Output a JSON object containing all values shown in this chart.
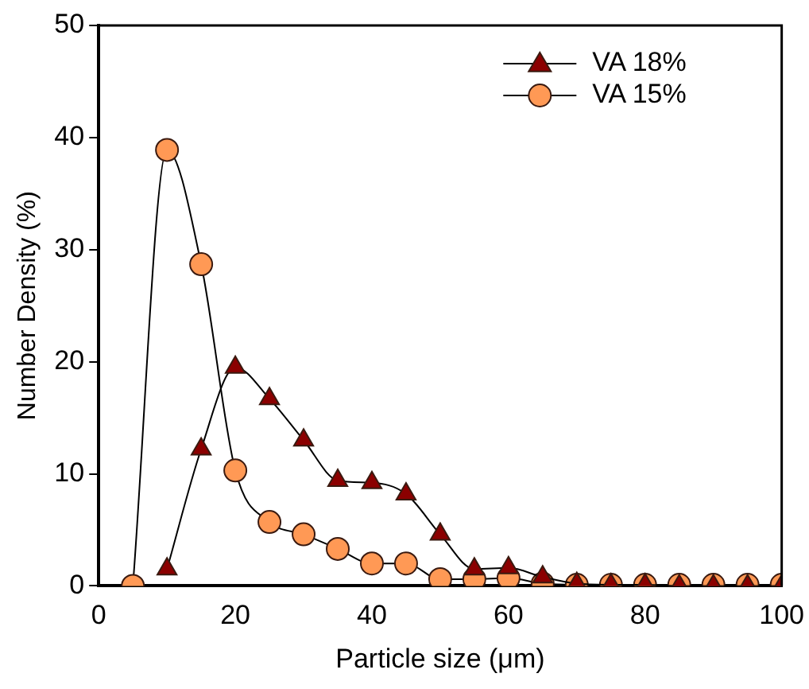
{
  "chart_data": {
    "type": "line",
    "xlabel": "Particle size (μm)",
    "ylabel": "Number Density (%)",
    "xlim": [
      0,
      100
    ],
    "xticks": [
      0,
      20,
      40,
      60,
      80,
      100
    ],
    "ylim": [
      0,
      50
    ],
    "yticks": [
      0,
      10,
      20,
      30,
      40,
      50
    ],
    "grid": false,
    "legend": "top right",
    "line_style": "solid",
    "series": [
      {
        "name": "VA 18%",
        "color": "#8b0000",
        "marker": "triangle",
        "x": [
          10,
          15,
          20,
          25,
          30,
          35,
          40,
          45,
          50,
          55,
          60,
          65,
          70,
          75,
          80,
          85,
          90,
          95,
          100
        ],
        "values": [
          1.5,
          12.2,
          19.5,
          16.7,
          13.0,
          9.4,
          9.2,
          8.2,
          4.6,
          1.5,
          1.6,
          0.8,
          0.2,
          0.1,
          0.1,
          0,
          0,
          0,
          0
        ]
      },
      {
        "name": "VA 15%",
        "color": "#ff9955",
        "marker": "circle",
        "x": [
          5,
          10,
          15,
          20,
          25,
          30,
          35,
          40,
          45,
          50,
          55,
          60,
          65,
          70,
          75,
          80,
          85,
          90,
          95,
          100
        ],
        "values": [
          0,
          38.9,
          28.7,
          10.3,
          5.7,
          4.6,
          3.3,
          2.0,
          2.0,
          0.6,
          0.6,
          0.7,
          0.2,
          0.1,
          0.1,
          0.1,
          0.1,
          0.1,
          0.1,
          0.1
        ]
      }
    ]
  }
}
